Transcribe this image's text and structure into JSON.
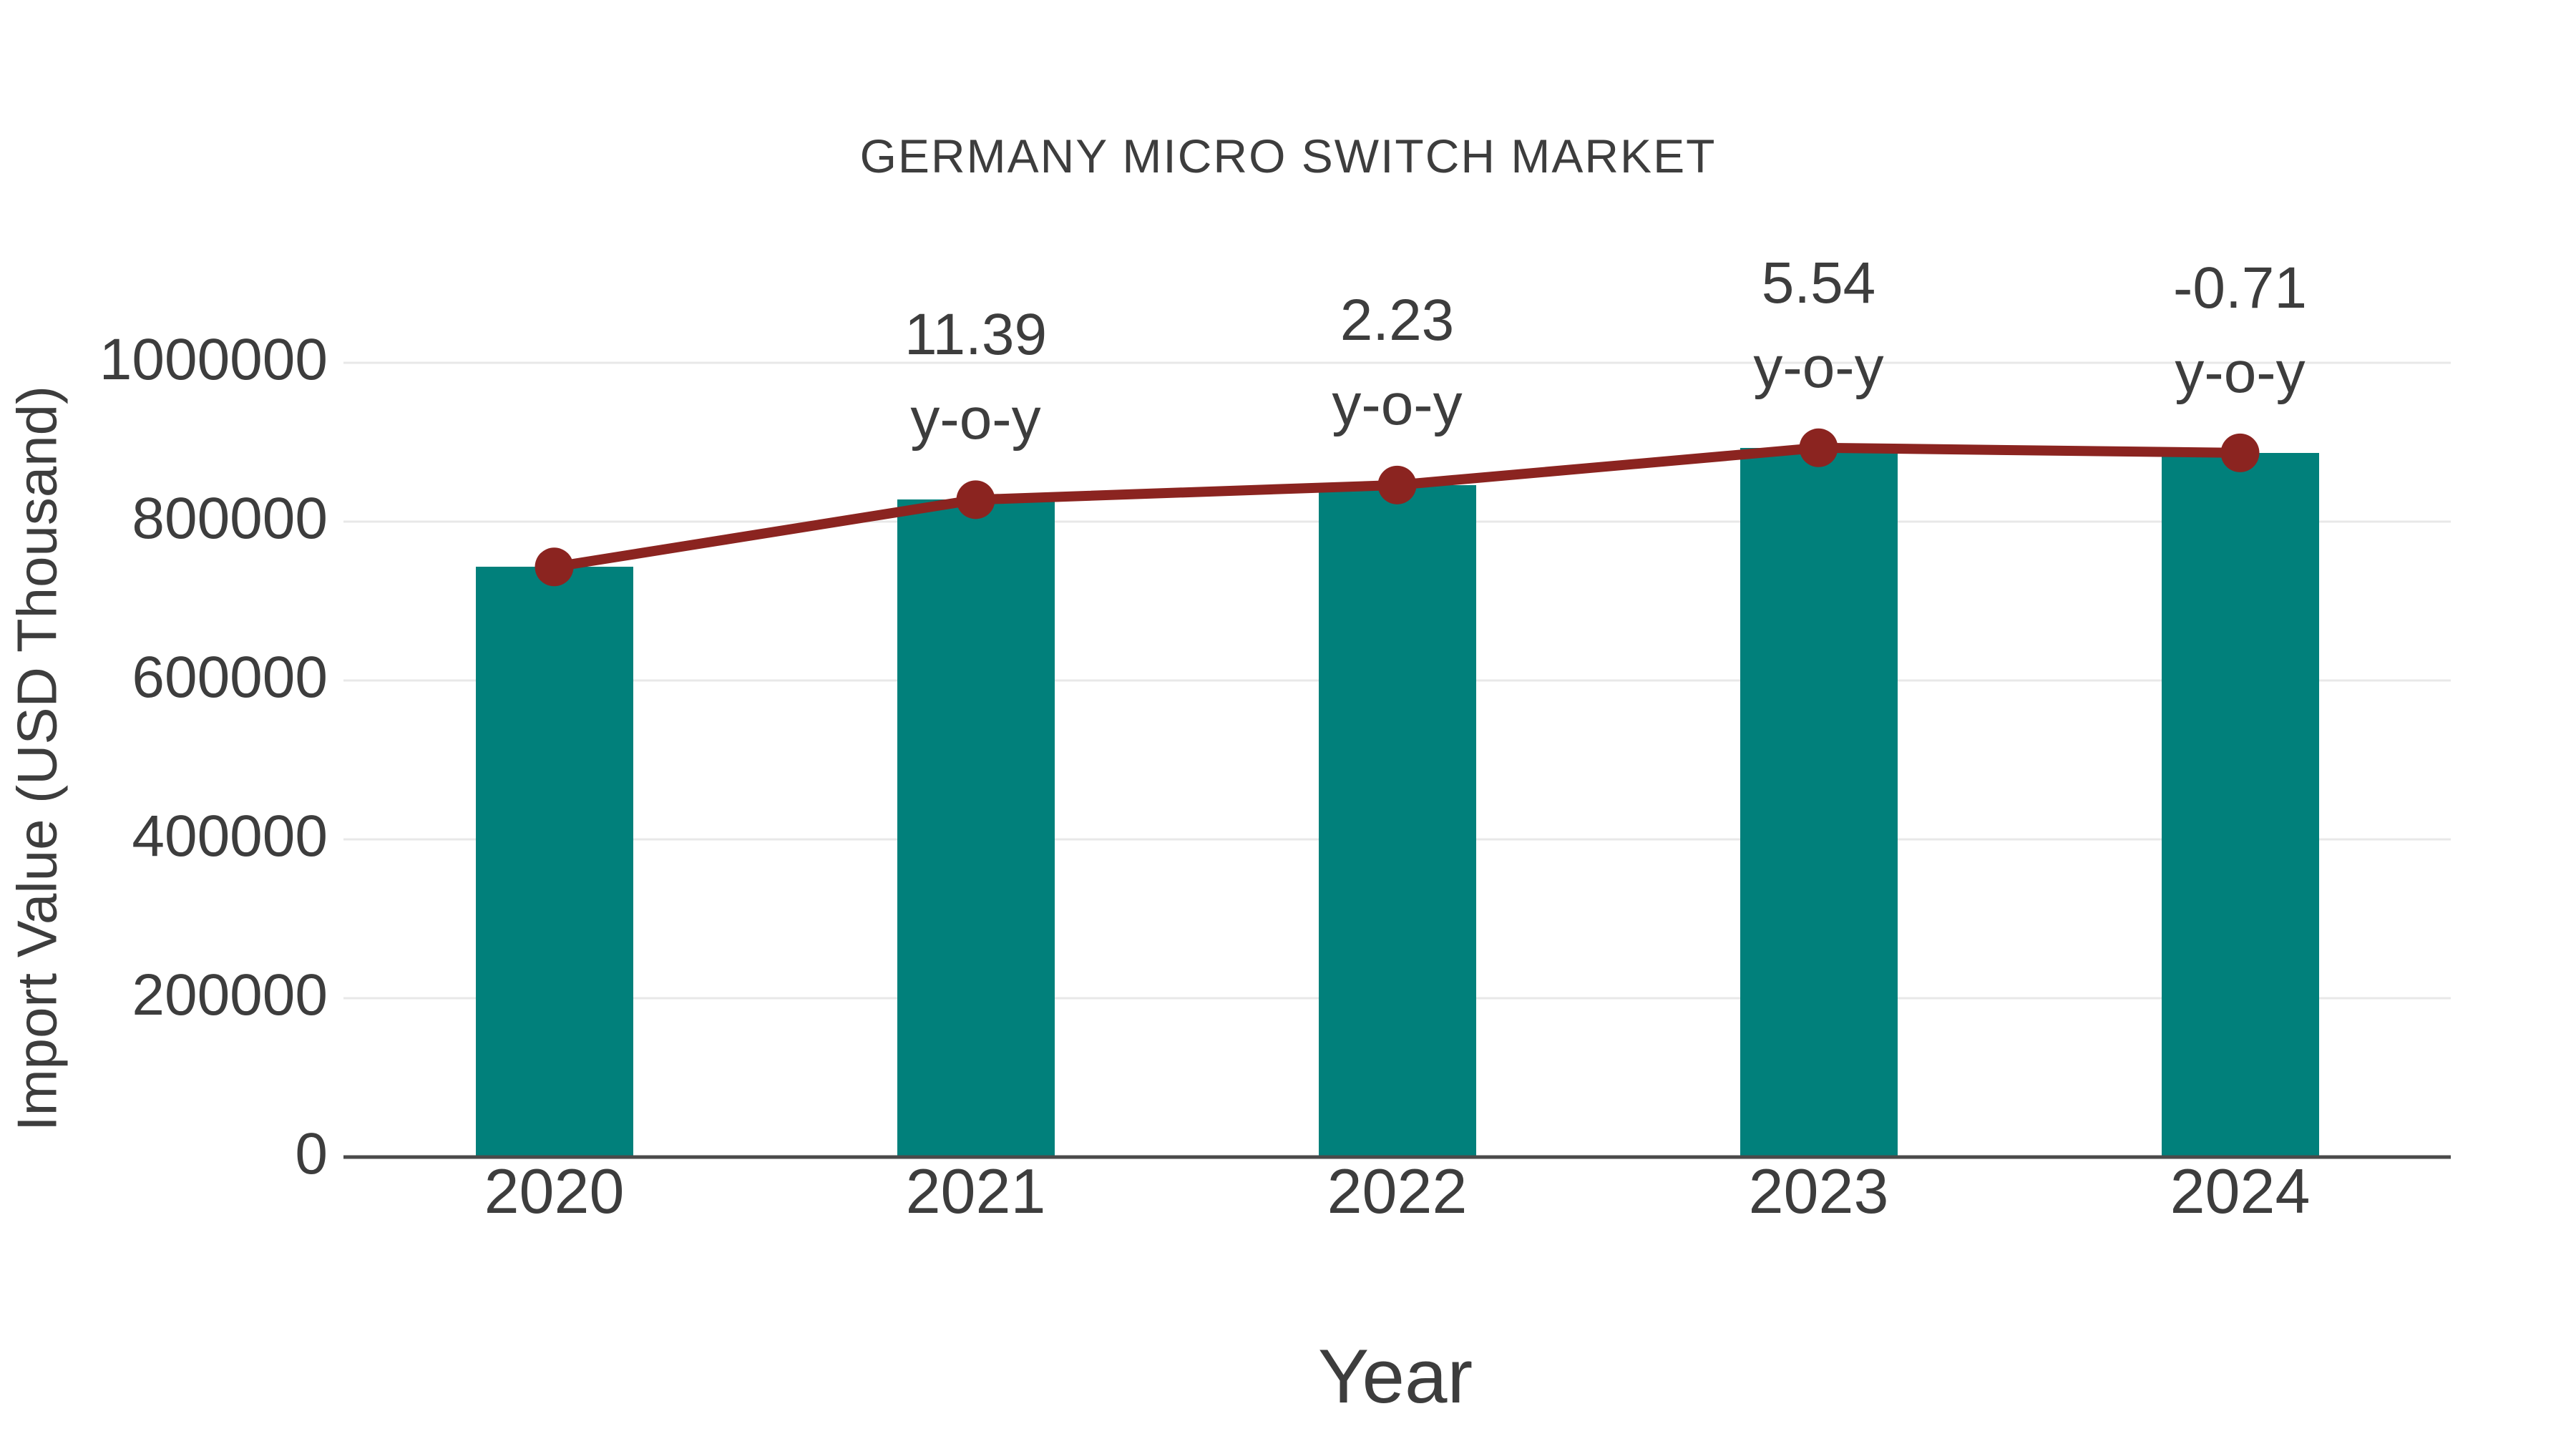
{
  "title": "GERMANY MICRO SWITCH MARKET",
  "colors": {
    "bar": "#01807B",
    "line": "#8B2420",
    "grid": "#E8E8E8",
    "axis": "#4A4A4A",
    "text": "#3D3D3D",
    "background": "#FFFFFF"
  },
  "chart_data": {
    "type": "bar",
    "title": "GERMANY MICRO SWITCH MARKET",
    "xlabel": "Year",
    "ylabel": "Import Value (USD Thousand)",
    "categories": [
      "2020",
      "2021",
      "2022",
      "2023",
      "2024"
    ],
    "series": [
      {
        "name": "Import Value bars",
        "type": "bar",
        "color": "#01807B",
        "values": [
          743000,
          827600,
          846100,
          893000,
          886600
        ]
      },
      {
        "name": "Import Value trend line",
        "type": "line",
        "color": "#8B2420",
        "values": [
          743000,
          827600,
          846100,
          893000,
          886600
        ]
      }
    ],
    "annotations": [
      {
        "category": "2021",
        "value_label": "11.39",
        "suffix_label": "y-o-y"
      },
      {
        "category": "2022",
        "value_label": "2.23",
        "suffix_label": "y-o-y"
      },
      {
        "category": "2023",
        "value_label": "5.54",
        "suffix_label": "y-o-y"
      },
      {
        "category": "2024",
        "value_label": "-0.71",
        "suffix_label": "y-o-y"
      }
    ],
    "ylim": [
      0,
      1000000
    ],
    "yticks": [
      0,
      200000,
      400000,
      600000,
      800000,
      1000000
    ],
    "ytick_labels": [
      "0",
      "200000",
      "400000",
      "600000",
      "800000",
      "1000000"
    ],
    "grid": true,
    "legend": "none"
  }
}
